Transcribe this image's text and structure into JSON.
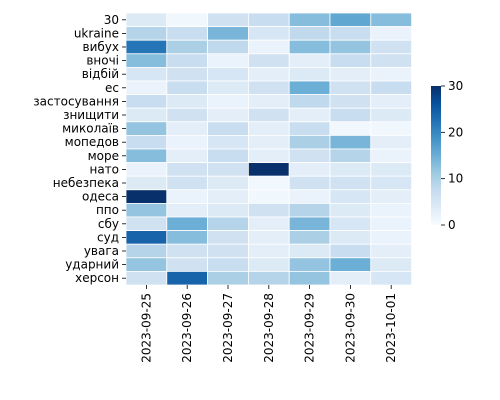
{
  "chart_data": {
    "type": "heatmap",
    "title": "",
    "xlabel": "",
    "ylabel": "",
    "rows": [
      "30",
      "ukraine",
      "вибух",
      "вночі",
      "відбій",
      "ес",
      "застосування",
      "знищити",
      "миколаїв",
      "мопедов",
      "море",
      "нато",
      "небезпека",
      "одеса",
      "ппо",
      "сбу",
      "суд",
      "увага",
      "ударний",
      "херсон"
    ],
    "columns": [
      "2023-09-25",
      "2023-09-26",
      "2023-09-27",
      "2023-09-28",
      "2023-09-29",
      "2023-09-30",
      "2023-10-01"
    ],
    "values": [
      [
        4,
        1,
        6,
        7,
        13,
        16,
        13
      ],
      [
        9,
        7,
        14,
        5,
        8,
        7,
        2
      ],
      [
        22,
        10,
        8,
        2,
        13,
        12,
        6
      ],
      [
        13,
        7,
        2,
        6,
        3,
        7,
        6
      ],
      [
        5,
        6,
        5,
        3,
        4,
        3,
        2
      ],
      [
        2,
        7,
        4,
        6,
        15,
        6,
        7
      ],
      [
        7,
        4,
        2,
        3,
        8,
        6,
        3
      ],
      [
        4,
        6,
        3,
        6,
        3,
        7,
        4
      ],
      [
        12,
        3,
        7,
        3,
        7,
        1,
        1
      ],
      [
        7,
        2,
        5,
        3,
        10,
        14,
        3
      ],
      [
        13,
        3,
        7,
        3,
        6,
        9,
        2
      ],
      [
        2,
        6,
        6,
        32,
        3,
        4,
        4
      ],
      [
        4,
        6,
        4,
        1,
        6,
        6,
        5
      ],
      [
        33,
        2,
        3,
        1,
        2,
        5,
        3
      ],
      [
        12,
        3,
        4,
        6,
        9,
        4,
        2
      ],
      [
        6,
        15,
        9,
        3,
        14,
        5,
        2
      ],
      [
        24,
        13,
        6,
        3,
        10,
        4,
        2
      ],
      [
        9,
        6,
        6,
        3,
        4,
        7,
        3
      ],
      [
        12,
        6,
        7,
        4,
        12,
        15,
        4
      ],
      [
        6,
        24,
        10,
        9,
        12,
        3,
        5
      ]
    ],
    "colorbar": {
      "ticks": [
        0,
        10,
        20,
        30
      ],
      "range": [
        0,
        30
      ],
      "colormap": "Blues"
    }
  }
}
